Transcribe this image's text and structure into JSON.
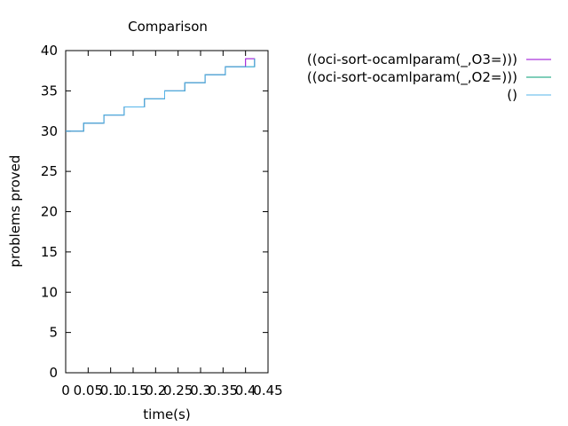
{
  "chart_data": {
    "type": "line",
    "title": "Comparison",
    "xlabel": "time(s)",
    "ylabel": "problems proved",
    "xlim": [
      0,
      0.45
    ],
    "ylim": [
      0,
      40
    ],
    "xticks": [
      0,
      0.05,
      0.1,
      0.15,
      0.2,
      0.25,
      0.3,
      0.35,
      0.4,
      0.45
    ],
    "xtick_labels": [
      "0",
      "0.05",
      "0.1",
      "0.15",
      "0.2",
      "0.25",
      "0.3",
      "0.35",
      "0.4",
      "0.45"
    ],
    "yticks": [
      0,
      5,
      10,
      15,
      20,
      25,
      30,
      35,
      40
    ],
    "ytick_labels": [
      "0",
      "5",
      "10",
      "15",
      "20",
      "25",
      "30",
      "35",
      "40"
    ],
    "grid": false,
    "legend_position": "outside-right",
    "series": [
      {
        "name": "((oci-sort-ocamlparam(_,O3=)))",
        "color": "#9400d3",
        "step": true,
        "x": [
          0,
          0.04,
          0.04,
          0.085,
          0.085,
          0.13,
          0.13,
          0.175,
          0.175,
          0.22,
          0.22,
          0.265,
          0.265,
          0.31,
          0.31,
          0.355,
          0.355,
          0.4,
          0.4,
          0.42,
          0.42
        ],
        "y": [
          30,
          30,
          31,
          31,
          32,
          32,
          33,
          33,
          34,
          34,
          35,
          35,
          36,
          36,
          37,
          37,
          38,
          38,
          39,
          39,
          38
        ]
      },
      {
        "name": "((oci-sort-ocamlparam(_,O2=)))",
        "color": "#009e73",
        "step": true,
        "x": [
          0,
          0.04,
          0.04,
          0.085,
          0.085,
          0.13,
          0.13,
          0.175,
          0.175,
          0.22,
          0.22,
          0.265,
          0.265,
          0.31,
          0.31,
          0.355,
          0.355,
          0.42,
          0.42
        ],
        "y": [
          30,
          30,
          31,
          31,
          32,
          32,
          33,
          33,
          34,
          34,
          35,
          35,
          36,
          36,
          37,
          37,
          38,
          38,
          39
        ]
      },
      {
        "name": "()",
        "color": "#56b4e9",
        "step": true,
        "x": [
          0,
          0.04,
          0.04,
          0.085,
          0.085,
          0.13,
          0.13,
          0.175,
          0.175,
          0.22,
          0.22,
          0.265,
          0.265,
          0.31,
          0.31,
          0.355,
          0.355,
          0.42,
          0.42
        ],
        "y": [
          30,
          30,
          31,
          31,
          32,
          32,
          33,
          33,
          34,
          34,
          35,
          35,
          36,
          36,
          37,
          37,
          38,
          38,
          39
        ]
      }
    ]
  }
}
